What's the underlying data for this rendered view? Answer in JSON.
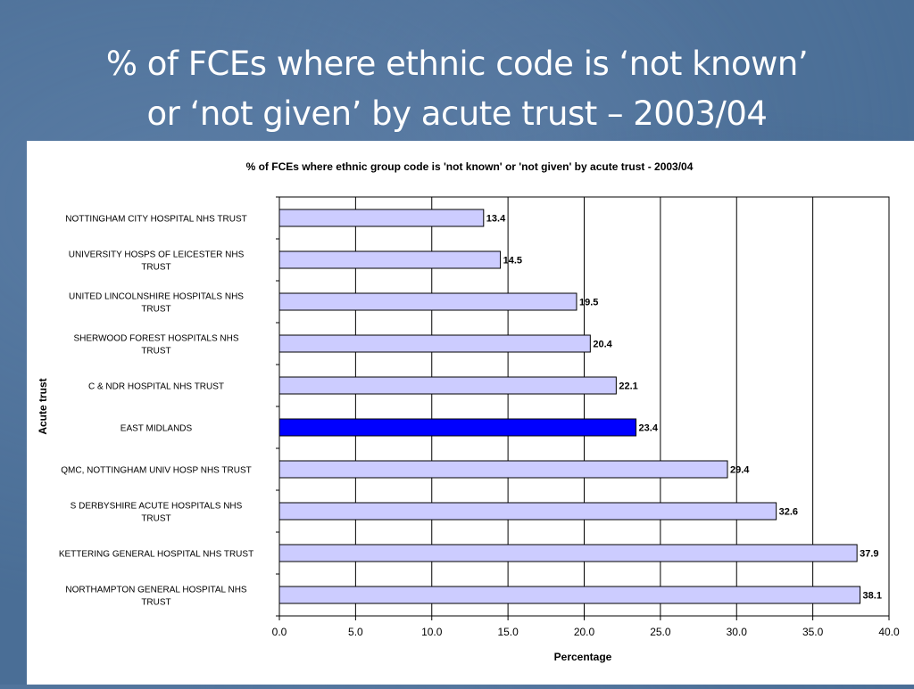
{
  "slide": {
    "title_line1": "% of FCEs where ethnic code is ‘not known’",
    "title_line2": "or ‘not given’ by acute trust – 2003/04"
  },
  "colors": {
    "bar_fill": "#ccccff",
    "highlight_fill": "#0000ff",
    "bar_stroke": "#000000",
    "slide_background": "#4a6e96"
  },
  "chart_data": {
    "type": "bar",
    "orientation": "horizontal",
    "title": "% of FCEs where ethnic group code is 'not known' or 'not given' by acute trust - 2003/04",
    "xlabel": "Percentage",
    "ylabel": "Acute trust",
    "xlim": [
      0,
      40
    ],
    "xticks": [
      "0.0",
      "5.0",
      "10.0",
      "15.0",
      "20.0",
      "25.0",
      "30.0",
      "35.0",
      "40.0"
    ],
    "grid": "vertical gridlines",
    "categories": [
      [
        "NOTTINGHAM CITY HOSPITAL NHS TRUST"
      ],
      [
        "UNIVERSITY HOSPS OF LEICESTER NHS",
        "TRUST"
      ],
      [
        "UNITED LINCOLNSHIRE HOSPITALS NHS",
        "TRUST"
      ],
      [
        "SHERWOOD FOREST HOSPITALS NHS",
        "TRUST"
      ],
      [
        "C & NDR HOSPITAL NHS TRUST"
      ],
      [
        "EAST MIDLANDS"
      ],
      [
        "QMC, NOTTINGHAM UNIV HOSP NHS TRUST"
      ],
      [
        "S DERBYSHIRE ACUTE HOSPITALS NHS",
        "TRUST"
      ],
      [
        "KETTERING GENERAL HOSPITAL NHS TRUST"
      ],
      [
        "NORTHAMPTON GENERAL HOSPITAL NHS",
        "TRUST"
      ]
    ],
    "values": [
      13.4,
      14.5,
      19.5,
      20.4,
      22.1,
      23.4,
      29.4,
      32.6,
      37.9,
      38.1
    ],
    "value_labels": [
      "13.4",
      "14.5",
      "19.5",
      "20.4",
      "22.1",
      "23.4",
      "29.4",
      "32.6",
      "37.9",
      "38.1"
    ],
    "highlight": "EAST MIDLANDS"
  }
}
